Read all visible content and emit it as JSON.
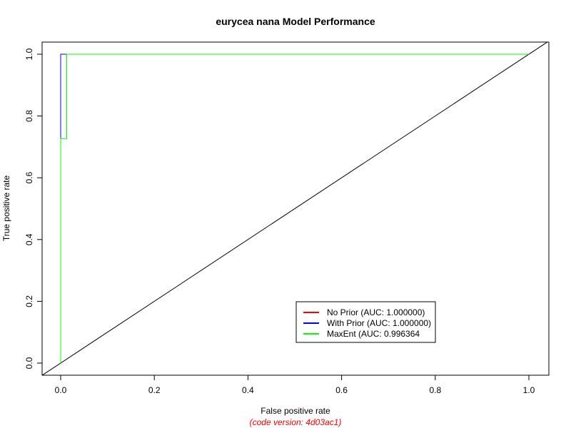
{
  "chart_data": {
    "type": "line",
    "title": "eurycea nana Model Performance",
    "xlabel": "False positive rate",
    "ylabel": "True positive rate",
    "subtitle": "(code version: 4d03ac1)",
    "xlim": [
      0,
      1
    ],
    "ylim": [
      0,
      1
    ],
    "x_ticks": [
      0.0,
      0.2,
      0.4,
      0.6,
      0.8,
      1.0
    ],
    "y_ticks": [
      0.0,
      0.2,
      0.4,
      0.6,
      0.8,
      1.0
    ],
    "x_tick_labels": [
      "0.0",
      "0.2",
      "0.4",
      "0.6",
      "0.8",
      "1.0"
    ],
    "y_tick_labels": [
      "0.0",
      "0.2",
      "0.4",
      "0.6",
      "0.8",
      "1.0"
    ],
    "grid": false,
    "legend_position": "bottom-right",
    "series": [
      {
        "name": "No Prior (AUC: 1.000000)",
        "color": "#ff0000",
        "x": [
          0,
          0,
          1
        ],
        "y": [
          0,
          1,
          1
        ]
      },
      {
        "name": "With Prior (AUC: 1.000000)",
        "color": "#0000ff",
        "x": [
          0,
          0,
          1
        ],
        "y": [
          0,
          1,
          1
        ]
      },
      {
        "name": "MaxEnt (AUC: 0.996364",
        "color": "#00ff00",
        "x": [
          0,
          0,
          0.013,
          0.013,
          1
        ],
        "y": [
          0,
          0.727,
          0.727,
          1,
          1
        ]
      }
    ],
    "reference_line": {
      "x": [
        0,
        1
      ],
      "y": [
        0,
        1
      ],
      "color": "#000000"
    }
  },
  "colors": {
    "subtitle": "#ff0000",
    "axis": "#000000"
  }
}
